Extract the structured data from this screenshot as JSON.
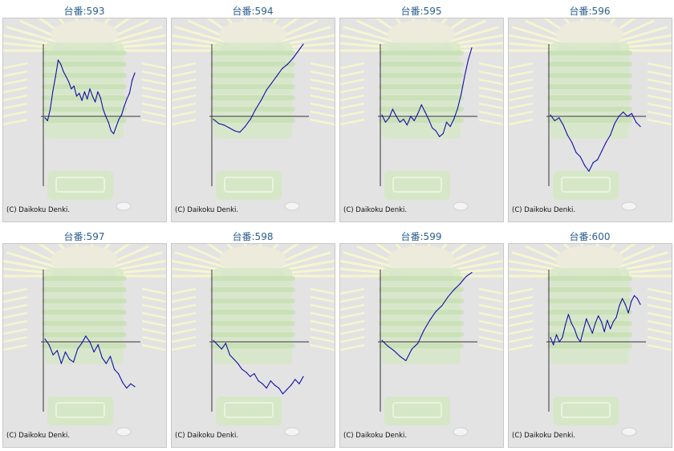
{
  "copyright": "(C) Daikoku Denki.",
  "colors": {
    "title": "#2b5f8e",
    "line": "#1010a8",
    "axis": "#333333",
    "panel_bg": "#e3e3e3",
    "panel_border": "#c8c8c8"
  },
  "chart_data": [
    {
      "type": "line",
      "title": "台番:593",
      "ylim": [
        -100,
        100
      ],
      "values": [
        -2,
        -6,
        10,
        35,
        55,
        78,
        72,
        62,
        55,
        48,
        38,
        42,
        28,
        32,
        22,
        34,
        24,
        38,
        28,
        20,
        34,
        26,
        10,
        0,
        -8,
        -20,
        -24,
        -14,
        -4,
        2,
        14,
        24,
        32,
        50,
        60
      ]
    },
    {
      "type": "line",
      "title": "台番:594",
      "ylim": [
        -100,
        100
      ],
      "values": [
        -4,
        -10,
        -12,
        -16,
        -20,
        -22,
        -14,
        -4,
        10,
        22,
        36,
        46,
        56,
        66,
        72,
        80,
        90,
        100
      ]
    },
    {
      "type": "line",
      "title": "台番:595",
      "ylim": [
        -100,
        100
      ],
      "values": [
        2,
        -8,
        -2,
        10,
        0,
        -8,
        -4,
        -12,
        0,
        -6,
        4,
        16,
        6,
        -4,
        -16,
        -20,
        -28,
        -24,
        -8,
        -14,
        -4,
        10,
        30,
        55,
        78,
        95
      ]
    },
    {
      "type": "line",
      "title": "台番:596",
      "ylim": [
        -100,
        100
      ],
      "values": [
        2,
        -6,
        -2,
        -12,
        -26,
        -36,
        -50,
        -56,
        -68,
        -76,
        -64,
        -60,
        -48,
        -36,
        -26,
        -10,
        0,
        6,
        0,
        4,
        -8,
        -14
      ]
    },
    {
      "type": "line",
      "title": "台番:597",
      "ylim": [
        -100,
        100
      ],
      "values": [
        4,
        -4,
        -18,
        -12,
        -30,
        -14,
        -24,
        -28,
        -10,
        -2,
        8,
        0,
        -14,
        -4,
        -22,
        -30,
        -20,
        -38,
        -44,
        -56,
        -64,
        -58,
        -62
      ]
    },
    {
      "type": "line",
      "title": "台番:598",
      "ylim": [
        -100,
        100
      ],
      "values": [
        2,
        -4,
        -10,
        -2,
        -18,
        -24,
        -30,
        -38,
        -42,
        -48,
        -44,
        -54,
        -58,
        -64,
        -54,
        -60,
        -64,
        -72,
        -66,
        -60,
        -52,
        -58,
        -48
      ]
    },
    {
      "type": "line",
      "title": "台番:599",
      "ylim": [
        -100,
        100
      ],
      "values": [
        2,
        -6,
        -12,
        -20,
        -26,
        -10,
        -2,
        16,
        30,
        42,
        50,
        62,
        72,
        80,
        90,
        96
      ]
    },
    {
      "type": "line",
      "title": "台番:600",
      "ylim": [
        -100,
        100
      ],
      "values": [
        6,
        -4,
        10,
        0,
        6,
        24,
        38,
        26,
        18,
        6,
        0,
        16,
        32,
        22,
        12,
        26,
        36,
        28,
        14,
        30,
        18,
        28,
        34,
        50,
        60,
        52,
        40,
        56,
        64,
        60,
        52
      ]
    }
  ]
}
